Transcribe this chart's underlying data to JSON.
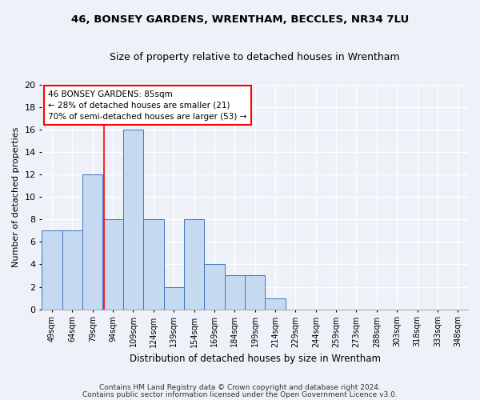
{
  "title1": "46, BONSEY GARDENS, WRENTHAM, BECCLES, NR34 7LU",
  "title2": "Size of property relative to detached houses in Wrentham",
  "xlabel": "Distribution of detached houses by size in Wrentham",
  "ylabel": "Number of detached properties",
  "footnote1": "Contains HM Land Registry data © Crown copyright and database right 2024.",
  "footnote2": "Contains public sector information licensed under the Open Government Licence v3.0.",
  "categories": [
    "49sqm",
    "64sqm",
    "79sqm",
    "94sqm",
    "109sqm",
    "124sqm",
    "139sqm",
    "154sqm",
    "169sqm",
    "184sqm",
    "199sqm",
    "214sqm",
    "229sqm",
    "244sqm",
    "259sqm",
    "273sqm",
    "288sqm",
    "303sqm",
    "318sqm",
    "333sqm",
    "348sqm"
  ],
  "values": [
    7,
    7,
    12,
    8,
    16,
    8,
    2,
    8,
    4,
    3,
    3,
    1,
    0,
    0,
    0,
    0,
    0,
    0,
    0,
    0,
    0
  ],
  "bar_color": "#c5d9f1",
  "bar_edge_color": "#4472c4",
  "ylim": [
    0,
    20
  ],
  "yticks": [
    0,
    2,
    4,
    6,
    8,
    10,
    12,
    14,
    16,
    18,
    20
  ],
  "red_line_x": 2.57,
  "annotation_line1": "46 BONSEY GARDENS: 85sqm",
  "annotation_line2": "← 28% of detached houses are smaller (21)",
  "annotation_line3": "70% of semi-detached houses are larger (53) →",
  "background_color": "#eef2f8",
  "plot_bg_color": "#eef2f8"
}
